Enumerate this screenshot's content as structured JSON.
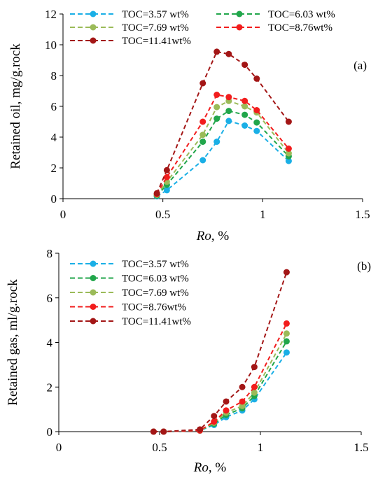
{
  "chart_data": [
    {
      "type": "line",
      "panel_label": "(a)",
      "title": "",
      "xlabel": "Ro",
      "xlabel_suffix": ", %",
      "ylabel": "Retained oil, mg/g.rock",
      "xlim": [
        0,
        1.5
      ],
      "ylim": [
        0,
        12
      ],
      "xticks": [
        0,
        0.5,
        1,
        1.5
      ],
      "xtick_labels": [
        "0",
        "0.5",
        "1",
        "1.5"
      ],
      "yticks": [
        0,
        2,
        4,
        6,
        8,
        10,
        12
      ],
      "ytick_labels": [
        "0",
        "2",
        "4",
        "6",
        "8",
        "10",
        "12"
      ],
      "grid": false,
      "legend_placement": "top (two columns)",
      "x": [
        0.47,
        0.52,
        0.7,
        0.77,
        0.83,
        0.91,
        0.97,
        1.13
      ],
      "series": [
        {
          "name": "TOC=3.57 wt%",
          "color": "#1AAFE6",
          "values": [
            0.15,
            0.55,
            2.5,
            3.7,
            5.05,
            4.75,
            4.4,
            2.45
          ]
        },
        {
          "name": "TOC=6.03 wt%",
          "color": "#21A64B",
          "values": [
            0.2,
            0.9,
            3.7,
            5.2,
            5.7,
            5.45,
            4.95,
            2.75
          ]
        },
        {
          "name": "TOC=7.69 wt%",
          "color": "#9BBB59",
          "values": [
            0.25,
            1.1,
            4.15,
            5.95,
            6.35,
            6.0,
            5.6,
            2.95
          ]
        },
        {
          "name": "TOC=8.76wt%",
          "color": "#F21D1D",
          "values": [
            0.3,
            1.4,
            5.0,
            6.75,
            6.6,
            6.35,
            5.75,
            3.25
          ]
        },
        {
          "name": "TOC=11.41wt%",
          "color": "#A31616",
          "values": [
            0.35,
            1.85,
            7.5,
            9.55,
            9.4,
            8.7,
            7.8,
            5.0
          ]
        }
      ]
    },
    {
      "type": "line",
      "panel_label": "(b)",
      "title": "",
      "xlabel": "Ro",
      "xlabel_suffix": ", %",
      "ylabel": "Retained gas, ml/g.rock",
      "xlim": [
        0,
        1.5
      ],
      "ylim": [
        0,
        8
      ],
      "xticks": [
        0,
        0.5,
        1,
        1.5
      ],
      "xtick_labels": [
        "0",
        "0.5",
        "1",
        "1.5"
      ],
      "yticks": [
        0,
        2,
        4,
        6,
        8
      ],
      "ytick_labels": [
        "0",
        "2",
        "4",
        "6",
        "8"
      ],
      "grid": false,
      "legend_placement": "top-left",
      "x": [
        0.47,
        0.52,
        0.7,
        0.77,
        0.83,
        0.91,
        0.97,
        1.13
      ],
      "series": [
        {
          "name": "TOC=3.57 wt%",
          "color": "#1AAFE6",
          "values": [
            0.0,
            0.0,
            0.05,
            0.3,
            0.65,
            0.95,
            1.45,
            3.55
          ]
        },
        {
          "name": "TOC=6.03 wt%",
          "color": "#21A64B",
          "values": [
            0.0,
            0.0,
            0.05,
            0.35,
            0.75,
            1.05,
            1.6,
            4.05
          ]
        },
        {
          "name": "TOC=7.69 wt%",
          "color": "#9BBB59",
          "values": [
            0.0,
            0.0,
            0.05,
            0.4,
            0.85,
            1.15,
            1.75,
            4.4
          ]
        },
        {
          "name": "TOC=8.76wt%",
          "color": "#F21D1D",
          "values": [
            0.0,
            0.0,
            0.05,
            0.45,
            0.95,
            1.35,
            2.0,
            4.85
          ]
        },
        {
          "name": "TOC=11.41wt%",
          "color": "#A31616",
          "values": [
            0.0,
            0.0,
            0.1,
            0.7,
            1.35,
            2.0,
            2.9,
            7.15
          ]
        }
      ]
    }
  ]
}
